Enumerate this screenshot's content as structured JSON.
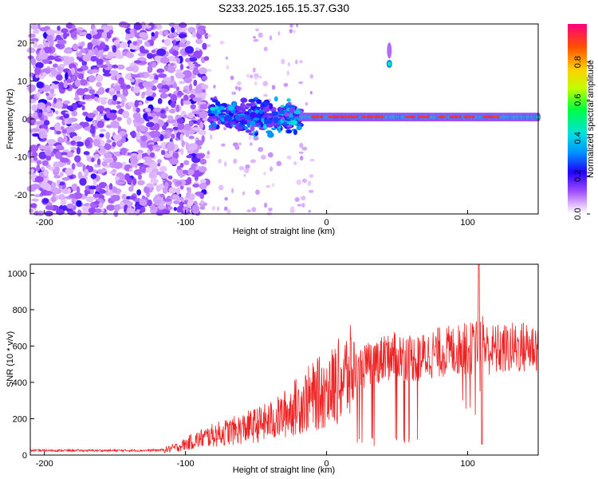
{
  "chart_data": [
    {
      "type": "heatmap",
      "title": "S233.2025.165.15.37.G30",
      "xlabel": "Height of straight line (km)",
      "ylabel": "Frequency (Hz)",
      "xlim": [
        -210,
        150
      ],
      "ylim": [
        -25,
        25
      ],
      "xticks": [
        -200,
        -100,
        0,
        100
      ],
      "yticks": [
        -20,
        -10,
        0,
        10,
        20
      ],
      "colorbar": {
        "label": "Normalized spectral amplitude",
        "range": [
          0,
          1
        ],
        "ticks": [
          0.0,
          0.2,
          0.4,
          0.6,
          0.8
        ]
      },
      "features": [
        {
          "x": [
            -210,
            -85
          ],
          "f": [
            -25,
            25
          ],
          "amplitude": 0.2,
          "note": "broadband low-SNR noise"
        },
        {
          "x": [
            -82,
            -18
          ],
          "f": [
            -5,
            6
          ],
          "amplitude": 0.4,
          "note": "scattered carrier returns"
        },
        {
          "x": [
            -18,
            150
          ],
          "f": [
            -1.5,
            2.5
          ],
          "amplitude": 0.95,
          "note": "narrow carrier line near 0 Hz"
        },
        {
          "x": [
            43,
            46
          ],
          "f": [
            13,
            16
          ],
          "amplitude": 0.45,
          "note": "spurious peak near 14 Hz"
        }
      ]
    },
    {
      "type": "line",
      "xlabel": "Height of straight line (km)",
      "ylabel": "SNR (10 * v/v)",
      "xlim": [
        -210,
        150
      ],
      "ylim": [
        0,
        1050
      ],
      "xticks": [
        -200,
        -100,
        0,
        100
      ],
      "yticks": [
        0,
        200,
        400,
        600,
        800,
        1000
      ],
      "color": "#ee2222",
      "x": [
        -210,
        -190,
        -170,
        -150,
        -130,
        -115,
        -105,
        -95,
        -85,
        -75,
        -65,
        -55,
        -45,
        -35,
        -25,
        -15,
        -5,
        5,
        15,
        25,
        35,
        45,
        55,
        65,
        75,
        85,
        95,
        105,
        110,
        115,
        125,
        135,
        150
      ],
      "values": [
        25,
        25,
        25,
        25,
        25,
        28,
        45,
        75,
        100,
        120,
        135,
        155,
        175,
        200,
        250,
        300,
        340,
        380,
        440,
        480,
        520,
        540,
        545,
        530,
        560,
        570,
        580,
        590,
        600,
        580,
        580,
        590,
        600
      ]
    }
  ]
}
